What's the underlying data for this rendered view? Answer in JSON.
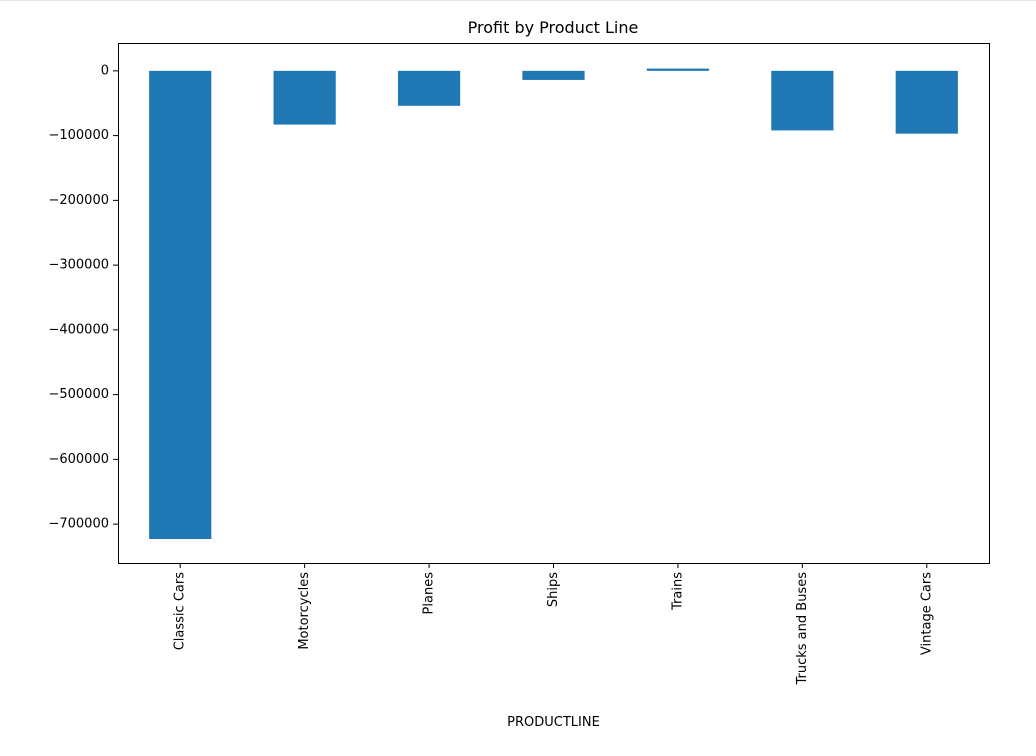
{
  "chart_data": {
    "type": "bar",
    "title": "Profit by Product Line",
    "xlabel": "PRODUCTLINE",
    "ylabel": "",
    "categories": [
      "Classic Cars",
      "Motorcycles",
      "Planes",
      "Ships",
      "Trains",
      "Trucks and Buses",
      "Vintage Cars"
    ],
    "values": [
      -723000,
      -83000,
      -54000,
      -14000,
      3500,
      -92000,
      -97000
    ],
    "ylim": [
      -760000,
      43000
    ],
    "yticks": [
      0,
      -100000,
      -200000,
      -300000,
      -400000,
      -500000,
      -600000,
      -700000
    ],
    "ytick_labels": [
      "0",
      "−100000",
      "−200000",
      "−300000",
      "−400000",
      "−500000",
      "−600000",
      "−700000"
    ],
    "bar_color": "#1f77b4",
    "grid": false,
    "legend": "none",
    "xtick_rotation": 90
  }
}
